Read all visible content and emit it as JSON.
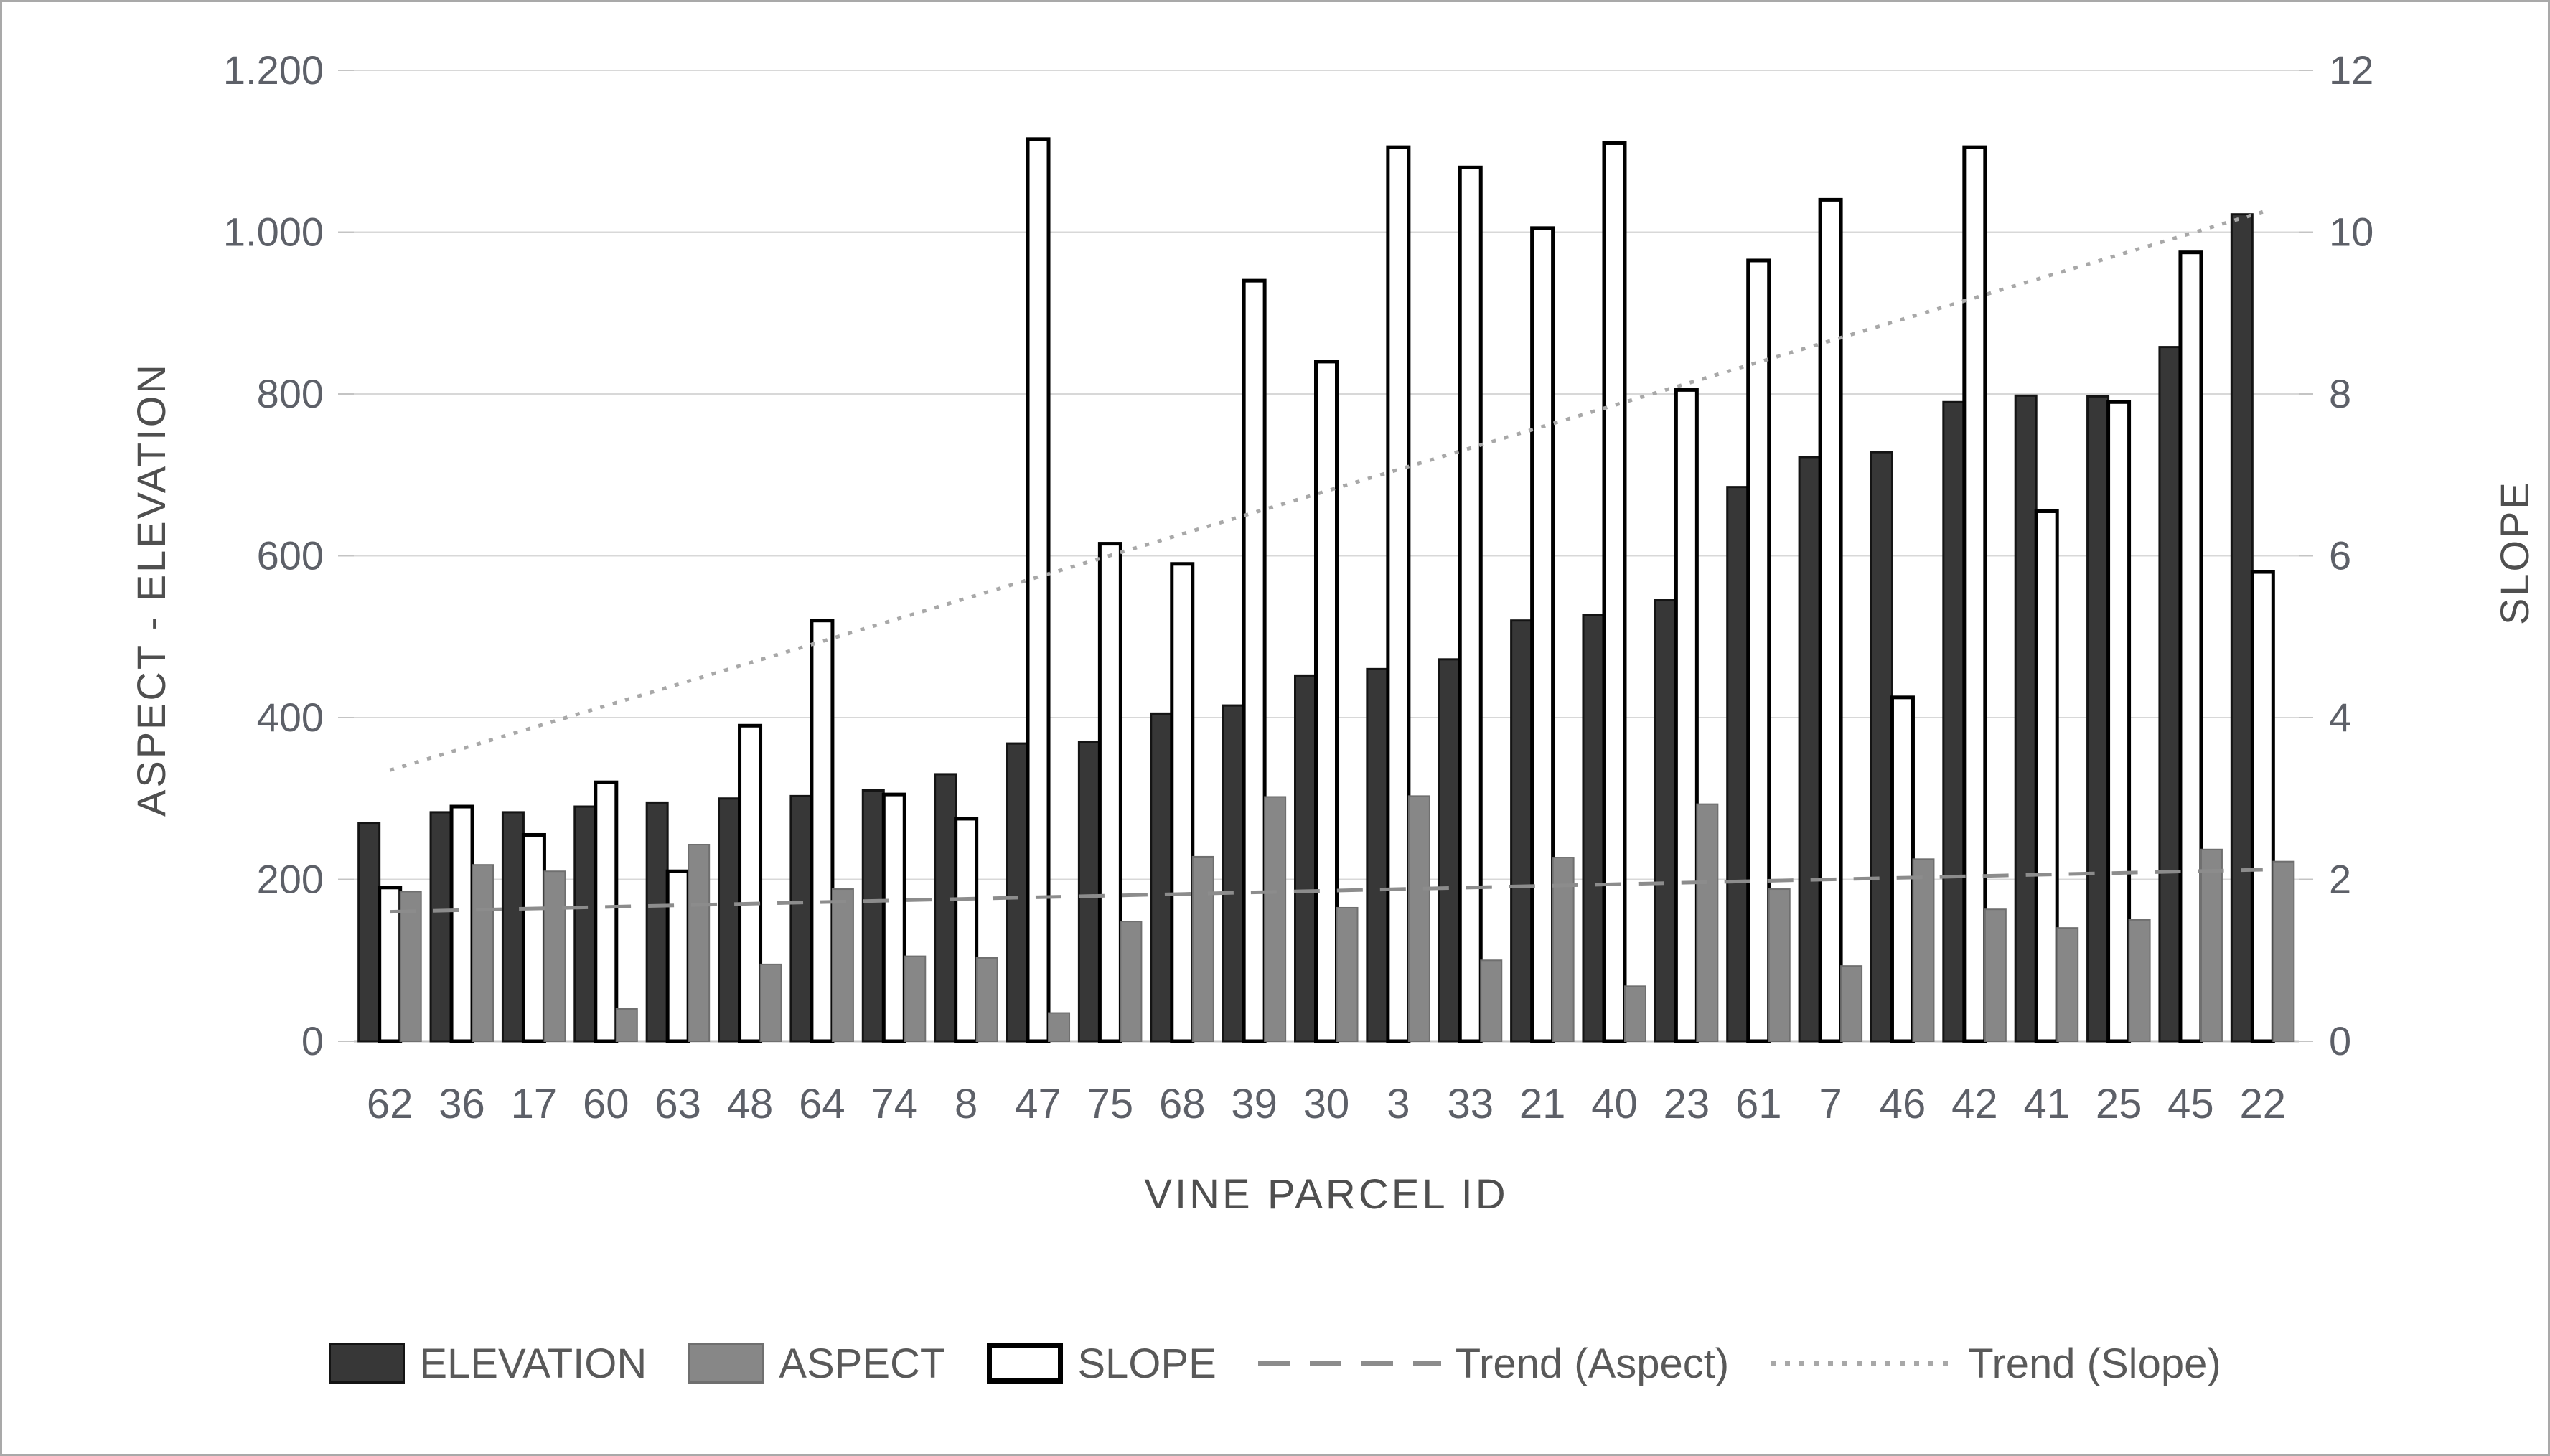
{
  "chart_data": {
    "type": "bar",
    "title": "",
    "xlabel": "VINE PARCEL ID",
    "categories": [
      "62",
      "36",
      "17",
      "60",
      "63",
      "48",
      "64",
      "74",
      "8",
      "47",
      "75",
      "68",
      "39",
      "30",
      "3",
      "33",
      "21",
      "40",
      "23",
      "61",
      "7",
      "46",
      "42",
      "41",
      "25",
      "45",
      "22"
    ],
    "series": [
      {
        "name": "ELEVATION",
        "axis": "left",
        "type": "bar",
        "values": [
          270,
          283,
          283,
          290,
          295,
          300,
          303,
          310,
          330,
          368,
          370,
          405,
          415,
          452,
          460,
          472,
          520,
          527,
          545,
          685,
          722,
          728,
          790,
          798,
          797,
          858,
          1022
        ]
      },
      {
        "name": "SLOPE",
        "axis": "right",
        "type": "bar",
        "values": [
          1.9,
          2.9,
          2.55,
          3.2,
          2.1,
          3.9,
          5.2,
          3.05,
          2.75,
          11.15,
          6.15,
          5.9,
          9.4,
          8.4,
          11.05,
          10.8,
          10.05,
          11.1,
          8.05,
          9.65,
          10.4,
          4.25,
          11.05,
          6.55,
          7.9,
          9.75,
          5.8
        ]
      },
      {
        "name": "ASPECT",
        "axis": "left",
        "type": "bar",
        "values": [
          185,
          218,
          210,
          40,
          243,
          95,
          188,
          105,
          103,
          35,
          148,
          228,
          302,
          165,
          303,
          100,
          227,
          68,
          293,
          188,
          93,
          225,
          163,
          140,
          150,
          237,
          222
        ]
      }
    ],
    "group_order_note": "bars drawn left-to-right per parcel: ELEVATION, SLOPE, ASPECT",
    "trend_lines": [
      {
        "name": "Trend (Aspect)",
        "axis": "left",
        "style": "dashed",
        "start_value": 160,
        "end_value": 212
      },
      {
        "name": "Trend (Slope)",
        "axis": "right",
        "style": "dotted",
        "start_value": 3.35,
        "end_value": 10.25
      }
    ],
    "left_axis": {
      "title": "ASPECT  -  ELEVATION",
      "min": 0,
      "max": 1200,
      "tick_labels": [
        "1.200",
        "1.000",
        "800",
        "600",
        "400",
        "200",
        "0"
      ]
    },
    "right_axis": {
      "title": "SLOPE",
      "min": 0,
      "max": 12,
      "tick_labels": [
        "12",
        "10",
        "8",
        "6",
        "4",
        "2",
        "0"
      ]
    },
    "x_axis": {
      "title": "VINE PARCEL ID"
    },
    "legend": {
      "position": "bottom",
      "items": [
        "ELEVATION",
        "ASPECT",
        "SLOPE",
        "Trend (Aspect)",
        "Trend (Slope)"
      ]
    },
    "grid": "horizontal",
    "colors": {
      "elevation_fill": "#373737",
      "elevation_stroke": "#141414",
      "aspect_fill": "#878787",
      "aspect_stroke": "#6f6f6f",
      "slope_fill": "#ffffff",
      "slope_stroke": "#000000",
      "gridline": "#d8d8d8",
      "axis_line": "#c4c4c4",
      "tick_text": "#5d6068",
      "trend_aspect": "#8c8c8c",
      "trend_slope": "#a8a8a8",
      "frame_border": "#a9a9a9"
    }
  }
}
